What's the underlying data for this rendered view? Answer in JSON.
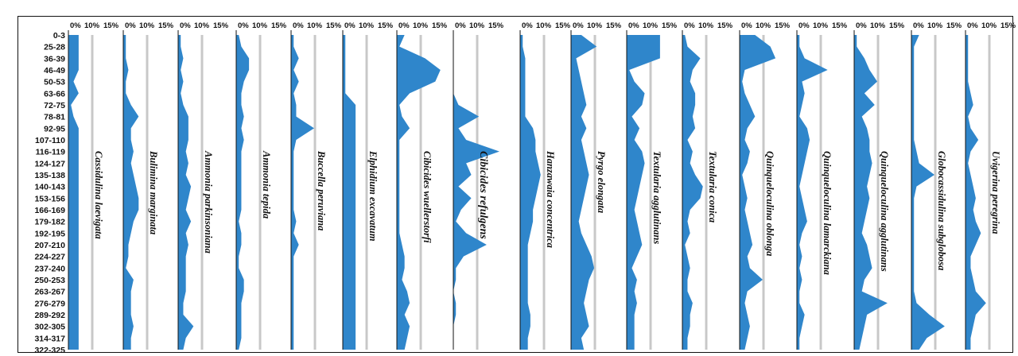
{
  "chart_data": {
    "type": "area",
    "orientation": "vertical-stratigraphic",
    "depth_labels": [
      "0-3",
      "25-28",
      "36-39",
      "46-49",
      "50-53",
      "63-66",
      "72-75",
      "78-81",
      "92-95",
      "107-110",
      "116-119",
      "124-127",
      "135-138",
      "140-143",
      "153-156",
      "166-169",
      "179-182",
      "192-195",
      "207-210",
      "224-227",
      "237-240",
      "250-253",
      "263-267",
      "276-279",
      "289-292",
      "302-305",
      "314-317",
      "322-325"
    ],
    "x_ticks": [
      "0%",
      "10%",
      "15%"
    ],
    "colors": {
      "fill": "#2f86cb",
      "axis": "#111111",
      "ref": "#c8c8c8"
    },
    "series": [
      {
        "name": "Cassidulina laevigata",
        "values": [
          4,
          4,
          4,
          4,
          2,
          4,
          1,
          2,
          4,
          4,
          4,
          4,
          4,
          4,
          4,
          4,
          4,
          4,
          4,
          4,
          4,
          4,
          4,
          4,
          4,
          4,
          4,
          4
        ]
      },
      {
        "name": "Bulimina marginata",
        "values": [
          1,
          1,
          1,
          2,
          1,
          1,
          3,
          6,
          3,
          3,
          4,
          3,
          4,
          5,
          6,
          6,
          4,
          3,
          2,
          2,
          1,
          4,
          3,
          3,
          3,
          4,
          3,
          3
        ]
      },
      {
        "name": "Ammonia parkinsoniana",
        "values": [
          1,
          1,
          2,
          1,
          2,
          1,
          2,
          4,
          4,
          4,
          3,
          4,
          3,
          5,
          4,
          3,
          5,
          3,
          4,
          3,
          3,
          3,
          3,
          2,
          2,
          6,
          3,
          2
        ]
      },
      {
        "name": "Ammonia tepida",
        "values": [
          1,
          2,
          5,
          5,
          3,
          2,
          2,
          3,
          2,
          3,
          2,
          2,
          2,
          2,
          2,
          2,
          1,
          2,
          2,
          1,
          1,
          3,
          3,
          2,
          2,
          2,
          2,
          1
        ]
      },
      {
        "name": "Buccella peruviana",
        "values": [
          1,
          1,
          3,
          1,
          3,
          1,
          2,
          2,
          9,
          2,
          1,
          1,
          1,
          1,
          1,
          1,
          2,
          1,
          3,
          1,
          1,
          1,
          1,
          1,
          1,
          1,
          1,
          1
        ]
      },
      {
        "name": "Elphidium excavatum",
        "values": [
          1,
          1,
          1,
          1,
          1,
          1,
          5,
          5,
          5,
          5,
          5,
          5,
          5,
          5,
          5,
          5,
          5,
          5,
          5,
          5,
          5,
          5,
          5,
          5,
          5,
          5,
          5,
          5
        ]
      },
      {
        "name": "Cibicides wuellerstorfi",
        "values": [
          3,
          1,
          11,
          17,
          15,
          5,
          1,
          2,
          5,
          1,
          1,
          1,
          1,
          1,
          1,
          1,
          1,
          1,
          2,
          3,
          3,
          2,
          4,
          5,
          3,
          5,
          4,
          3
        ]
      },
      {
        "name": "Cibicides refulgens",
        "values": [
          0,
          0,
          0,
          0,
          0,
          0,
          2,
          10,
          2,
          5,
          18,
          5,
          7,
          2,
          7,
          3,
          1,
          5,
          13,
          4,
          1,
          1,
          0,
          1,
          1,
          0,
          0,
          0
        ]
      },
      {
        "name": "Hanzawaia concentrica",
        "values": [
          1,
          1,
          2,
          2,
          2,
          2,
          2,
          2,
          5,
          6,
          6,
          7,
          8,
          7,
          6,
          5,
          5,
          4,
          3,
          3,
          3,
          3,
          3,
          3,
          4,
          4,
          3,
          3
        ]
      },
      {
        "name": "Pyrgo elongata",
        "values": [
          4,
          10,
          2,
          3,
          4,
          5,
          6,
          4,
          6,
          4,
          5,
          6,
          7,
          6,
          5,
          4,
          3,
          4,
          6,
          8,
          9,
          7,
          6,
          5,
          6,
          7,
          4,
          5
        ]
      },
      {
        "name": "Textularia agglutinans",
        "values": [
          13,
          13,
          13,
          1,
          3,
          7,
          6,
          2,
          5,
          3,
          6,
          7,
          6,
          5,
          4,
          3,
          4,
          5,
          6,
          4,
          2,
          4,
          3,
          4,
          3,
          3,
          3,
          3
        ]
      },
      {
        "name": "Textularia conica",
        "values": [
          1,
          2,
          7,
          4,
          3,
          5,
          5,
          4,
          5,
          2,
          4,
          3,
          5,
          8,
          7,
          3,
          2,
          3,
          1,
          2,
          3,
          2,
          2,
          4,
          3,
          3,
          2,
          2
        ]
      },
      {
        "name": "Quinqueloculina oblonga",
        "values": [
          6,
          12,
          14,
          2,
          1,
          2,
          4,
          6,
          3,
          2,
          4,
          3,
          1,
          2,
          3,
          2,
          3,
          4,
          5,
          3,
          4,
          9,
          3,
          2,
          3,
          4,
          3,
          2
        ]
      },
      {
        "name": "Quinqueloculina lamarckiana",
        "values": [
          1,
          1,
          3,
          12,
          2,
          3,
          2,
          1,
          4,
          5,
          4,
          3,
          2,
          1,
          2,
          3,
          4,
          2,
          1,
          2,
          1,
          2,
          1,
          1,
          3,
          2,
          1,
          1
        ]
      },
      {
        "name": "Quinqueloculina agglutinans",
        "values": [
          1,
          1,
          4,
          6,
          9,
          4,
          8,
          3,
          5,
          6,
          6,
          7,
          6,
          5,
          6,
          5,
          4,
          3,
          5,
          6,
          7,
          4,
          3,
          13,
          5,
          4,
          3,
          2
        ]
      },
      {
        "name": "Globocassidulina subglobosa",
        "values": [
          3,
          1,
          1,
          1,
          1,
          1,
          1,
          1,
          1,
          1,
          2,
          3,
          9,
          2,
          1,
          1,
          1,
          1,
          1,
          1,
          1,
          1,
          1,
          2,
          7,
          13,
          6,
          3
        ]
      },
      {
        "name": "Uvigerina peregrina",
        "values": [
          1,
          1,
          1,
          1,
          1,
          2,
          3,
          1,
          2,
          5,
          2,
          1,
          2,
          3,
          4,
          3,
          4,
          6,
          4,
          2,
          2,
          3,
          4,
          8,
          4,
          3,
          2,
          2
        ]
      }
    ]
  }
}
